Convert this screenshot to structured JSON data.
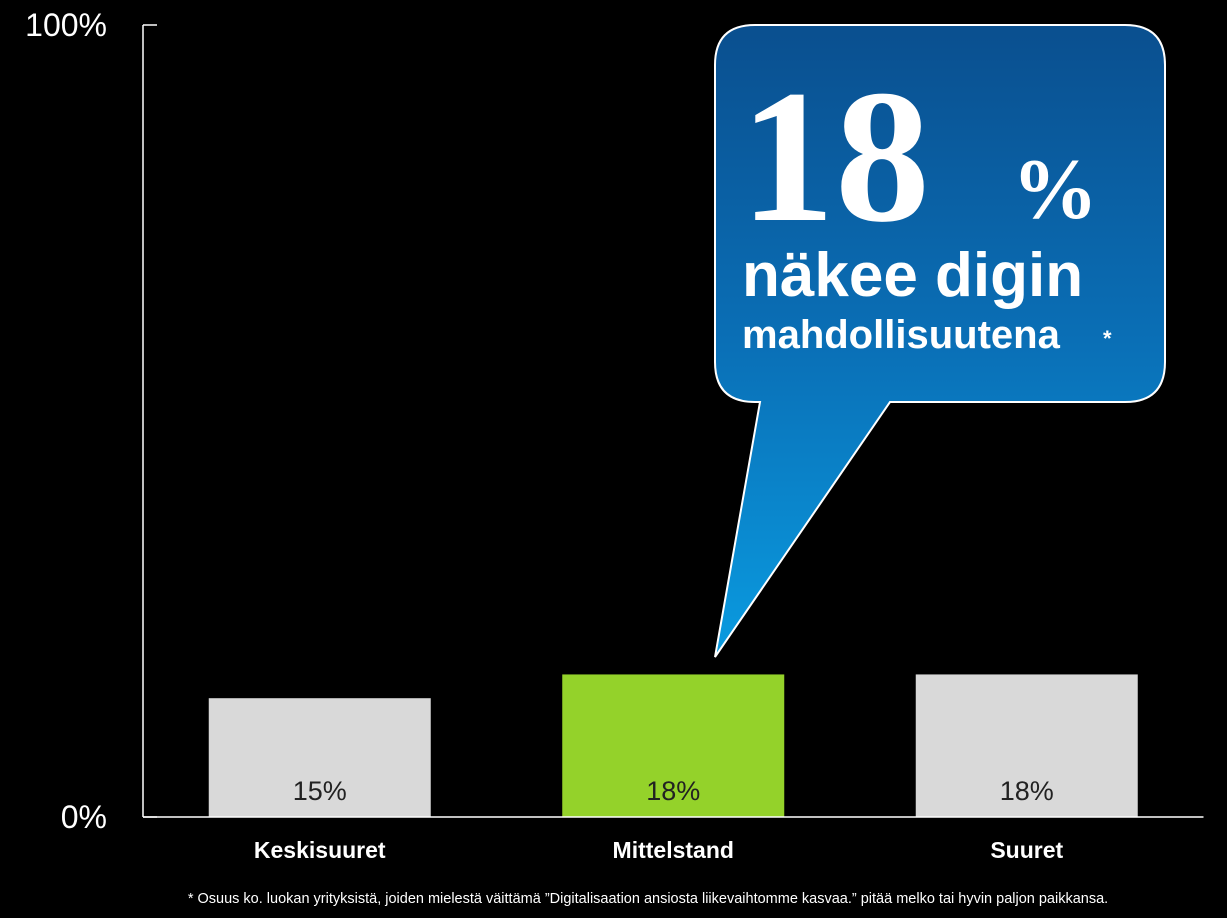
{
  "chart_data": {
    "type": "bar",
    "categories": [
      "Keskisuuret",
      "Mittelstand",
      "Suuret"
    ],
    "values": [
      15,
      18,
      18
    ],
    "value_labels": [
      "15%",
      "18%",
      "18%"
    ],
    "colors": [
      "#d9d9d9",
      "#94d22a",
      "#d9d9d9"
    ],
    "ylim": [
      0,
      100
    ],
    "yticks": [
      {
        "value": 0,
        "label": "0%"
      },
      {
        "value": 100,
        "label": "100%"
      }
    ],
    "annotation": {
      "big": "18",
      "unit": "%",
      "line1": "näkee digin",
      "line2": "mahdollisuutena",
      "mark": "*"
    },
    "footnote": "* Osuus ko. luokan yrityksistä, joiden mielestä väittämä ”Digitalisaation ansiosta liikevaihtomme kasvaa.”  pitää melko tai hyvin paljon paikkansa."
  }
}
